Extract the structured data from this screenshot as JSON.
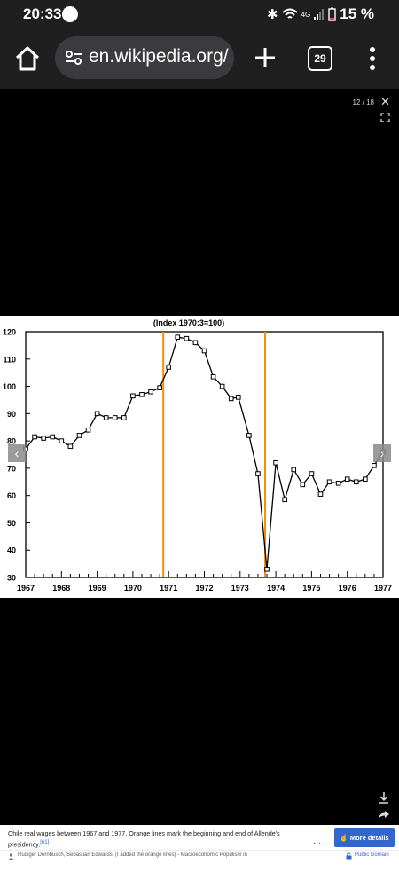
{
  "status": {
    "time": "20:33",
    "network": "4G",
    "battery": "15 %"
  },
  "browser": {
    "url": "en.wikipedia.org/",
    "tab_count": "29"
  },
  "viewer": {
    "counter": "12 / 18",
    "close_glyph": "✕",
    "prev_glyph": "‹",
    "next_glyph": "›"
  },
  "chart_data": {
    "type": "line",
    "title": "(Index 1970:3=100)",
    "xlabel": "",
    "ylabel": "",
    "xlim": [
      1967,
      1977
    ],
    "ylim": [
      30,
      120
    ],
    "x_ticks": [
      "1967",
      "1968",
      "1969",
      "1970",
      "1971",
      "1972",
      "1973",
      "1974",
      "1975",
      "1976",
      "1977"
    ],
    "y_ticks": [
      30,
      40,
      50,
      60,
      70,
      80,
      90,
      100,
      110,
      120
    ],
    "grid": false,
    "series": [
      {
        "name": "",
        "x": [
          1967.0,
          1967.25,
          1967.5,
          1967.75,
          1968.0,
          1968.25,
          1968.5,
          1968.75,
          1969.0,
          1969.25,
          1969.5,
          1969.75,
          1970.0,
          1970.25,
          1970.5,
          1970.75,
          1971.0,
          1971.25,
          1971.5,
          1971.75,
          1972.0,
          1972.25,
          1972.5,
          1972.75,
          1972.95,
          1973.25,
          1973.5,
          1973.75,
          1974.0,
          1974.25,
          1974.5,
          1974.75,
          1975.0,
          1975.25,
          1975.5,
          1975.75,
          1976.0,
          1976.25,
          1976.5,
          1976.75,
          1977.0
        ],
        "y": [
          77,
          81.5,
          81,
          81.5,
          80,
          78,
          82,
          84,
          90,
          88.5,
          88.5,
          88.5,
          96.5,
          97,
          98,
          99.5,
          107,
          118,
          117.5,
          116,
          113,
          103.5,
          100,
          95.5,
          96,
          82,
          68,
          33,
          72,
          58.5,
          69.5,
          64,
          68,
          60.5,
          65,
          64.5,
          66,
          65,
          66,
          71,
          76
        ]
      }
    ],
    "vertical_markers": [
      {
        "x": 1970.85,
        "color": "#ff8c00"
      },
      {
        "x": 1973.7,
        "color": "#ff8c00"
      }
    ]
  },
  "caption": {
    "text": "Chile real wages between 1967 and 1977. Orange lines mark the beginning and end of Allende's presidency.",
    "ref": "[61]",
    "more_dots": "...",
    "more_details": "More details",
    "credit": "Rudiger Dornbusch, Sebastian Edwards. (I added the orange lines) - Macroeconomic Populism in",
    "license": "Public Domain"
  },
  "colors": {
    "marker": "#ff8c00",
    "link": "#3366cc"
  }
}
